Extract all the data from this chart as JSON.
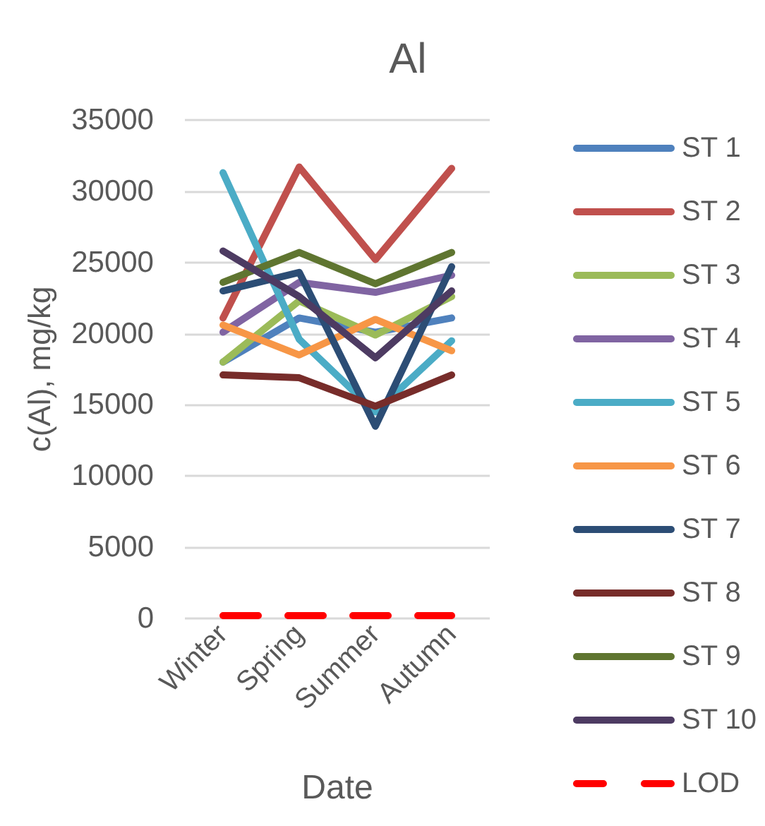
{
  "chart_data": {
    "type": "line",
    "title": "Al",
    "xlabel": "Date",
    "ylabel": "c(Al), mg/kg",
    "categories": [
      "Winter",
      "Spring",
      "Summer",
      "Autumn"
    ],
    "series": [
      {
        "name": "ST 1",
        "color": "#4f81bd",
        "values": [
          18000,
          21100,
          20100,
          21100
        ]
      },
      {
        "name": "ST 2",
        "color": "#c0504d",
        "values": [
          21100,
          31700,
          25200,
          31600
        ]
      },
      {
        "name": "ST 3",
        "color": "#9bbb59",
        "values": [
          18000,
          22300,
          19900,
          22600
        ]
      },
      {
        "name": "ST 4",
        "color": "#8064a2",
        "values": [
          20100,
          23600,
          22900,
          24100
        ]
      },
      {
        "name": "ST 5",
        "color": "#4bacc6",
        "values": [
          31300,
          19600,
          14500,
          19500
        ]
      },
      {
        "name": "ST 6",
        "color": "#f79646",
        "values": [
          20600,
          18500,
          21000,
          18800
        ]
      },
      {
        "name": "ST 7",
        "color": "#2c4d75",
        "values": [
          23000,
          24300,
          13500,
          24700
        ]
      },
      {
        "name": "ST 8",
        "color": "#772c2a",
        "values": [
          17100,
          16900,
          14900,
          17100
        ]
      },
      {
        "name": "ST 9",
        "color": "#5f7530",
        "values": [
          23600,
          25700,
          23500,
          25700
        ]
      },
      {
        "name": "ST 10",
        "color": "#4d3b62",
        "values": [
          25800,
          22600,
          18300,
          23000
        ]
      },
      {
        "name": "LOD",
        "color": "#ff0000",
        "values": [
          200,
          200,
          200,
          200
        ],
        "line_style": "dashed"
      }
    ],
    "ylim": [
      0,
      35000
    ],
    "yticks": [
      0,
      5000,
      10000,
      15000,
      20000,
      25000,
      30000,
      35000
    ],
    "grid": "y",
    "legend": "right",
    "marker": "none",
    "line_style": "solid"
  }
}
